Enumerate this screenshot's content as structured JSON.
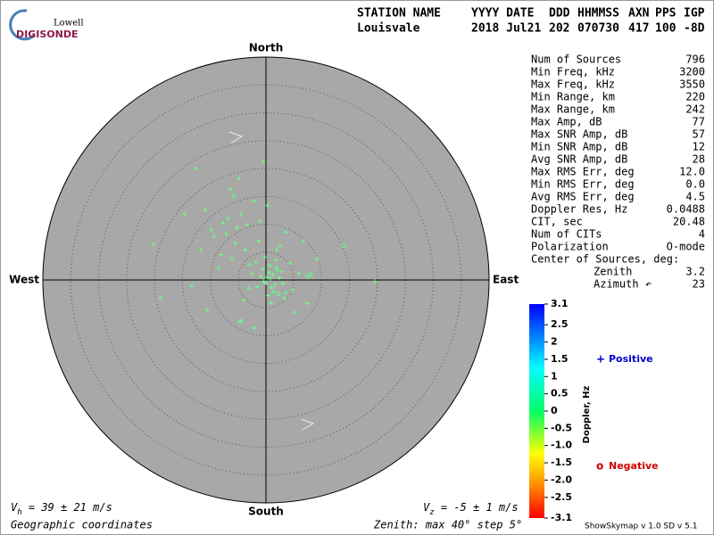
{
  "header": {
    "logo_top": "Lowell",
    "logo_bottom": "DIGISONDE",
    "columns": [
      {
        "name": "STATION NAME",
        "value": "Louisvale"
      },
      {
        "name": "YYYY DATE",
        "value": "2018 Jul21"
      },
      {
        "name": "DDD",
        "value": "202"
      },
      {
        "name": "HHMMSS",
        "value": "070730"
      },
      {
        "name": "AXN",
        "value": "417"
      },
      {
        "name": "PPS",
        "value": "100"
      },
      {
        "name": "IGP",
        "value": "-8D"
      }
    ]
  },
  "stats": {
    "rows": [
      {
        "label": "Num of Sources",
        "value": 796
      },
      {
        "label": "Min Freq, kHz",
        "value": 3200
      },
      {
        "label": "Max Freq, kHz",
        "value": 3550
      },
      {
        "label": "Min Range, km",
        "value": 220
      },
      {
        "label": "Max Range, km",
        "value": 242
      },
      {
        "label": "Max Amp, dB",
        "value": 77
      },
      {
        "label": "Max SNR Amp, dB",
        "value": 57
      },
      {
        "label": "Min SNR Amp, dB",
        "value": 12
      },
      {
        "label": "Avg SNR Amp, dB",
        "value": 28
      },
      {
        "label": "Max RMS Err, deg",
        "value": "12.0"
      },
      {
        "label": "Min RMS Err, deg",
        "value": "0.0"
      },
      {
        "label": "Avg RMS Err, deg",
        "value": 4.5
      },
      {
        "label": "Doppler Res, Hz",
        "value": 0.0488
      },
      {
        "label": "CIT, sec",
        "value": 20.48
      },
      {
        "label": "Num of CITs",
        "value": 4
      },
      {
        "label": "Polarization",
        "value": "O-mode"
      }
    ],
    "center_title": "Center of Sources, deg:",
    "center_rows": [
      {
        "label": "Zenith",
        "value": 3.2
      },
      {
        "label": "Azimuth ↶",
        "value": 23
      }
    ]
  },
  "chart_data": {
    "type": "scatter",
    "north": "North",
    "south": "South",
    "west": "West",
    "east": "East",
    "rlim": [
      0,
      40
    ],
    "rticks": [
      5,
      10,
      15,
      20,
      25,
      30,
      35
    ],
    "series": [
      {
        "name": "Positive",
        "marker": "+",
        "color": "#66ff88",
        "legend_color": "#0000cc",
        "x": [
          -12.6,
          -0.5,
          -6.4,
          -4.8,
          -14.6,
          -20.2,
          -18.9,
          19.5,
          -10.6,
          -4.5,
          -2.1,
          5.1,
          7.4,
          9.1,
          6.7,
          3.5,
          0.3,
          -2.1,
          -4.5,
          -7.7,
          -9.3,
          -10.9,
          -11.7,
          -13.3,
          -8.5,
          -6.1,
          -3.7,
          -1.3,
          1.9,
          4.3,
          1.9,
          0.2,
          0.8,
          1.2,
          -0.4,
          -0.9,
          0.5,
          1.6,
          2.4,
          -1.5,
          0.0,
          1.0,
          2.0,
          -0.6,
          0.7,
          1.4,
          -2.4,
          3.0,
          -1.8,
          2.8,
          0.4,
          -3.0,
          3.6,
          -0.2,
          1.8,
          -2.9,
          -5.2,
          -6.8,
          -8.0,
          4.8,
          -3.4,
          -1.1,
          5.9,
          -4.0,
          2.5,
          -7.1,
          0.9,
          -9.8,
          -5.5,
          3.3
        ],
        "y": [
          20.0,
          21.3,
          16.3,
          18.2,
          11.8,
          6.4,
          -3.2,
          -0.3,
          -5.4,
          -7.4,
          -8.6,
          -5.8,
          -4.2,
          3.8,
          7.0,
          8.6,
          13.4,
          14.2,
          11.8,
          10.2,
          7.8,
          12.6,
          5.4,
          -1.0,
          2.2,
          3.8,
          5.4,
          7.0,
          5.4,
          3.0,
          2.2,
          0.5,
          0.2,
          1.0,
          -0.3,
          0.6,
          1.4,
          -0.8,
          0.4,
          -1.2,
          -0.5,
          -1.4,
          1.8,
          2.0,
          2.6,
          -2.1,
          1.1,
          -0.6,
          3.2,
          1.5,
          -2.8,
          -1.5,
          -2.3,
          4.1,
          3.6,
          2.7,
          9.4,
          11.0,
          4.5,
          -1.8,
          9.9,
          10.5,
          1.2,
          -3.6,
          6.2,
          8.3,
          -4.1,
          9.0,
          6.6,
          -3.3
        ]
      },
      {
        "name": "Negative",
        "marker": "o",
        "color": "#66ff88",
        "legend_color": "#cc0000",
        "x": [
          13.9,
          7.5,
          8.0,
          -5.8,
          -4.6,
          2.2
        ],
        "y": [
          6.2,
          0.6,
          1.0,
          15.0,
          -7.4,
          -2.5
        ]
      }
    ]
  },
  "colorbar": {
    "title": "Doppler, Hz",
    "clim": [
      -3.1,
      3.1
    ],
    "ticks": [
      3.1,
      2.5,
      2,
      1.5,
      1,
      0.5,
      0,
      -0.5,
      {
        "value": -1,
        "label": "-1.0"
      },
      -1.5,
      {
        "value": -2,
        "label": "-2.0"
      },
      -2.5,
      -3.1
    ]
  },
  "footer": {
    "vh_symbol": "V",
    "vh_sub": "h",
    "vh_text": " = 39 ± 21 m/s",
    "vz_symbol": "V",
    "vz_sub": "z",
    "vz_text": " = -5 ± 1 m/s",
    "coords": "Geographic coordinates",
    "zenith_note": "Zenith: max 40°  step 5°",
    "version": "ShowSkymap v 1.0  SD v 5.1"
  }
}
